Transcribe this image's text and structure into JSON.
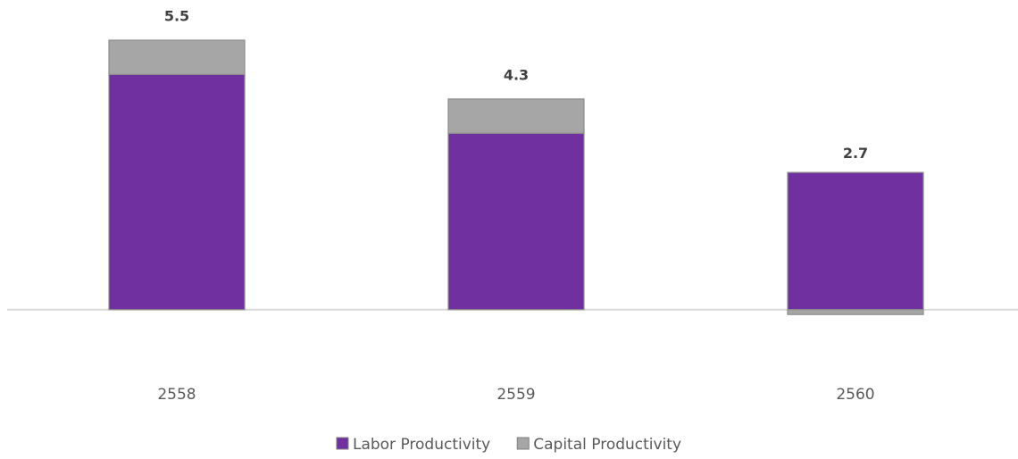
{
  "chart_data": {
    "type": "bar",
    "stacked": true,
    "categories": [
      "2558",
      "2559",
      "2560"
    ],
    "series": [
      {
        "name": "Labor Productivity",
        "color": "#7030a0",
        "values": [
          4.8,
          3.6,
          2.8
        ]
      },
      {
        "name": "Capital Productivity",
        "color": "#a6a6a6",
        "values": [
          0.7,
          0.7,
          -0.1
        ]
      }
    ],
    "totals": [
      5.5,
      4.3,
      2.7
    ],
    "ylim": [
      -1.5,
      5.5
    ],
    "legend": "bottom"
  }
}
